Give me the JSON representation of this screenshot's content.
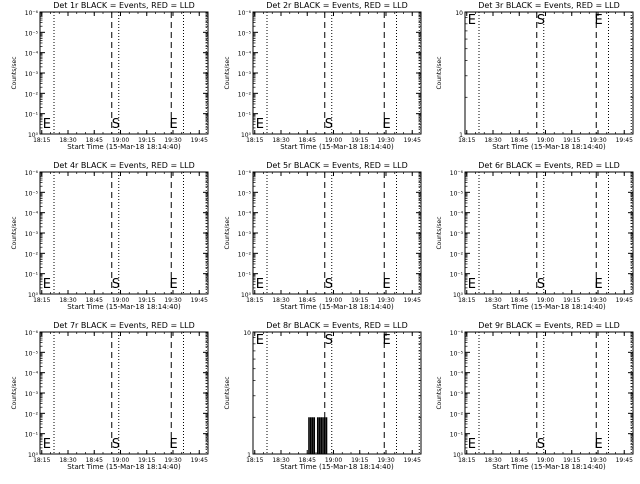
{
  "chart_data": [
    {
      "type": "line",
      "title": "Det 1r BLACK = Events, RED = LLD",
      "xlabel": "Start Time (15-Mar-18 18:14:40)",
      "ylabel": "Counts/sec",
      "x_ticks": [
        "18:15",
        "18:30",
        "18:45",
        "19:00",
        "19:15",
        "19:30",
        "19:45"
      ],
      "y_scale": "log",
      "y_ticks": [
        "10⁰",
        "10⁻¹",
        "10⁻²",
        "10⁻³",
        "10⁻⁴",
        "10⁻⁵",
        "10⁻⁶"
      ],
      "xlim": [
        "18:14",
        "19:50"
      ],
      "dotted_lines": [
        "18:22",
        "18:59",
        "19:36",
        "19:49"
      ],
      "dashed_lines": [
        "18:55",
        "19:29"
      ],
      "markers": [
        {
          "label": "E",
          "x": "18:15"
        },
        {
          "label": "S",
          "x": "18:55"
        },
        {
          "label": "E",
          "x": "19:28"
        }
      ],
      "series": []
    },
    {
      "type": "line",
      "title": "Det 2r BLACK = Events, RED = LLD",
      "xlabel": "Start Time (15-Mar-18 18:14:40)",
      "ylabel": "Counts/sec",
      "x_ticks": [
        "18:15",
        "18:30",
        "18:45",
        "19:00",
        "19:15",
        "19:30",
        "19:45"
      ],
      "y_scale": "log",
      "y_ticks": [
        "10⁰",
        "10⁻¹",
        "10⁻²",
        "10⁻³",
        "10⁻⁴",
        "10⁻⁵",
        "10⁻⁶"
      ],
      "xlim": [
        "18:14",
        "19:50"
      ],
      "dotted_lines": [
        "18:22",
        "18:59",
        "19:36",
        "19:49"
      ],
      "dashed_lines": [
        "18:55",
        "19:29"
      ],
      "markers": [
        {
          "label": "E",
          "x": "18:15"
        },
        {
          "label": "S",
          "x": "18:55"
        },
        {
          "label": "E",
          "x": "19:28"
        }
      ],
      "series": []
    },
    {
      "type": "line",
      "title": "Det 3r BLACK = Events, RED = LLD",
      "xlabel": "Start Time (15-Mar-18 18:14:40)",
      "ylabel": "Counts/sec",
      "x_ticks": [
        "18:15",
        "18:30",
        "18:45",
        "19:00",
        "19:15",
        "19:30",
        "19:45"
      ],
      "y_scale": "log",
      "y_ticks": [
        "1",
        "10"
      ],
      "xlim": [
        "18:14",
        "19:50"
      ],
      "dotted_lines": [
        "18:22",
        "18:59",
        "19:36",
        "19:49"
      ],
      "dashed_lines": [
        "18:55",
        "19:29"
      ],
      "markers": [
        {
          "label": "E",
          "x": "18:15"
        },
        {
          "label": "S",
          "x": "18:55"
        },
        {
          "label": "E",
          "x": "19:28"
        }
      ],
      "series": []
    },
    {
      "type": "line",
      "title": "Det 4r BLACK = Events, RED = LLD",
      "xlabel": "Start Time (15-Mar-18 18:14:40)",
      "ylabel": "Counts/sec",
      "x_ticks": [
        "18:15",
        "18:30",
        "18:45",
        "19:00",
        "19:15",
        "19:30",
        "19:45"
      ],
      "y_scale": "log",
      "y_ticks": [
        "10⁰",
        "10⁻¹",
        "10⁻²",
        "10⁻³",
        "10⁻⁴",
        "10⁻⁵",
        "10⁻⁶"
      ],
      "xlim": [
        "18:14",
        "19:50"
      ],
      "dotted_lines": [
        "18:22",
        "18:59",
        "19:36",
        "19:49"
      ],
      "dashed_lines": [
        "18:55",
        "19:29"
      ],
      "markers": [
        {
          "label": "E",
          "x": "18:15"
        },
        {
          "label": "S",
          "x": "18:55"
        },
        {
          "label": "E",
          "x": "19:28"
        }
      ],
      "series": []
    },
    {
      "type": "line",
      "title": "Det 5r BLACK = Events, RED = LLD",
      "xlabel": "Start Time (15-Mar-18 18:14:40)",
      "ylabel": "Counts/sec",
      "x_ticks": [
        "18:15",
        "18:30",
        "18:45",
        "19:00",
        "19:15",
        "19:30",
        "19:45"
      ],
      "y_scale": "log",
      "y_ticks": [
        "10⁰",
        "10⁻¹",
        "10⁻²",
        "10⁻³",
        "10⁻⁴",
        "10⁻⁵",
        "10⁻⁶"
      ],
      "xlim": [
        "18:14",
        "19:50"
      ],
      "dotted_lines": [
        "18:22",
        "18:59",
        "19:36",
        "19:49"
      ],
      "dashed_lines": [
        "18:55",
        "19:29"
      ],
      "markers": [
        {
          "label": "E",
          "x": "18:15"
        },
        {
          "label": "S",
          "x": "18:55"
        },
        {
          "label": "E",
          "x": "19:28"
        }
      ],
      "series": []
    },
    {
      "type": "line",
      "title": "Det 6r BLACK = Events, RED = LLD",
      "xlabel": "Start Time (15-Mar-18 18:14:40)",
      "ylabel": "Counts/sec",
      "x_ticks": [
        "18:15",
        "18:30",
        "18:45",
        "19:00",
        "19:15",
        "19:30",
        "19:45"
      ],
      "y_scale": "log",
      "y_ticks": [
        "10⁰",
        "10⁻¹",
        "10⁻²",
        "10⁻³",
        "10⁻⁴",
        "10⁻⁵",
        "10⁻⁶"
      ],
      "xlim": [
        "18:14",
        "19:50"
      ],
      "dotted_lines": [
        "18:22",
        "18:59",
        "19:36",
        "19:49"
      ],
      "dashed_lines": [
        "18:55",
        "19:29"
      ],
      "markers": [
        {
          "label": "E",
          "x": "18:15"
        },
        {
          "label": "S",
          "x": "18:55"
        },
        {
          "label": "E",
          "x": "19:28"
        }
      ],
      "series": []
    },
    {
      "type": "line",
      "title": "Det 7r BLACK = Events, RED = LLD",
      "xlabel": "Start Time (15-Mar-18 18:14:40)",
      "ylabel": "Counts/sec",
      "x_ticks": [
        "18:15",
        "18:30",
        "18:45",
        "19:00",
        "19:15",
        "19:30",
        "19:45"
      ],
      "y_scale": "log",
      "y_ticks": [
        "10⁰",
        "10⁻¹",
        "10⁻²",
        "10⁻³",
        "10⁻⁴",
        "10⁻⁵",
        "10⁻⁶"
      ],
      "xlim": [
        "18:14",
        "19:50"
      ],
      "dotted_lines": [
        "18:22",
        "18:59",
        "19:36",
        "19:49"
      ],
      "dashed_lines": [
        "18:55",
        "19:29"
      ],
      "markers": [
        {
          "label": "E",
          "x": "18:15"
        },
        {
          "label": "S",
          "x": "18:55"
        },
        {
          "label": "E",
          "x": "19:28"
        }
      ],
      "series": []
    },
    {
      "type": "bar",
      "title": "Det 8r BLACK = Events, RED = LLD",
      "xlabel": "Start Time (15-Mar-18 18:14:40)",
      "ylabel": "Counts/sec",
      "x_ticks": [
        "18:15",
        "18:30",
        "18:45",
        "19:00",
        "19:15",
        "19:30",
        "19:45"
      ],
      "y_scale": "log",
      "y_ticks": [
        "1",
        "10"
      ],
      "xlim": [
        "18:14",
        "19:50"
      ],
      "dotted_lines": [
        "18:22",
        "18:59",
        "19:36",
        "19:49"
      ],
      "dashed_lines": [
        "18:55",
        "19:29"
      ],
      "markers": [
        {
          "label": "E",
          "x": "18:15"
        },
        {
          "label": "S",
          "x": "18:55"
        },
        {
          "label": "E",
          "x": "19:28"
        }
      ],
      "series": [
        {
          "bars": [
            {
              "x": "18:46",
              "y": 2
            },
            {
              "x": "18:47",
              "y": 2
            },
            {
              "x": "18:48",
              "y": 2
            },
            {
              "x": "18:49",
              "y": 2
            },
            {
              "x": "18:51",
              "y": 2
            },
            {
              "x": "18:52",
              "y": 2
            },
            {
              "x": "18:53",
              "y": 2
            },
            {
              "x": "18:54",
              "y": 2
            },
            {
              "x": "18:55",
              "y": 2
            },
            {
              "x": "18:56",
              "y": 2
            }
          ]
        }
      ]
    },
    {
      "type": "line",
      "title": "Det 9r BLACK = Events, RED = LLD",
      "xlabel": "Start Time (15-Mar-18 18:14:40)",
      "ylabel": "Counts/sec",
      "x_ticks": [
        "18:15",
        "18:30",
        "18:45",
        "19:00",
        "19:15",
        "19:30",
        "19:45"
      ],
      "y_scale": "log",
      "y_ticks": [
        "10⁰",
        "10⁻¹",
        "10⁻²",
        "10⁻³",
        "10⁻⁴",
        "10⁻⁵",
        "10⁻⁶"
      ],
      "xlim": [
        "18:14",
        "19:50"
      ],
      "dotted_lines": [
        "18:22",
        "18:59",
        "19:36",
        "19:49"
      ],
      "dashed_lines": [
        "18:55",
        "19:29"
      ],
      "markers": [
        {
          "label": "E",
          "x": "18:15"
        },
        {
          "label": "S",
          "x": "18:55"
        },
        {
          "label": "E",
          "x": "19:28"
        }
      ],
      "series": []
    }
  ],
  "colors": {
    "background": "#ffffff",
    "foreground": "#000000"
  }
}
